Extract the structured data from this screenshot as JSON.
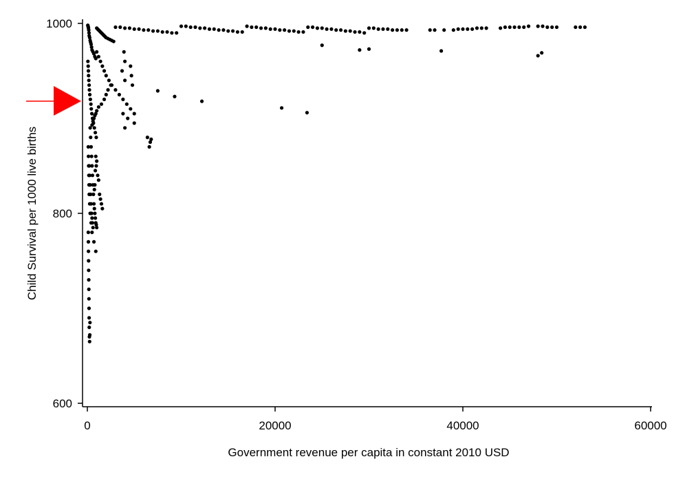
{
  "chart_data": {
    "type": "scatter",
    "title": "",
    "xlabel": "Government revenue per capita in constant 2010 USD",
    "ylabel": "Child Survival per 1000 live births",
    "xlim": [
      0,
      60000
    ],
    "ylim": [
      600,
      1000
    ],
    "xticks": [
      0,
      20000,
      40000,
      60000
    ],
    "yticks": [
      600,
      800,
      1000
    ],
    "xtick_labels": [
      "0",
      "20000",
      "40000",
      "60000"
    ],
    "ytick_labels": [
      "600",
      "800",
      "1000"
    ],
    "grid": false,
    "legend": "none",
    "marker_color": "#000000",
    "annotation": {
      "type": "arrow",
      "color": "#ff0000",
      "y": 918,
      "direction": "right"
    },
    "series": [
      {
        "x": [
          50,
          80,
          100,
          120,
          150,
          180,
          200,
          250,
          300,
          350,
          400,
          450,
          500,
          600,
          700,
          800,
          900,
          60,
          90,
          110,
          130,
          160,
          190,
          220,
          260,
          320,
          380,
          420,
          480,
          550,
          650,
          750,
          850,
          950,
          100,
          120,
          140,
          160,
          180,
          200,
          250,
          300,
          400,
          500,
          700,
          900,
          1000,
          1100,
          1200,
          1300,
          1400,
          1500,
          1600,
          1700,
          1800,
          1900,
          2000,
          2200,
          2400,
          2600,
          2800,
          1000,
          1200,
          1400,
          1600,
          1800,
          2000,
          2300,
          2600,
          3000,
          3400,
          3800,
          4200,
          4600,
          5000,
          3000,
          3500,
          4000,
          4500,
          5000,
          5500,
          6000,
          6500,
          7000,
          7500,
          8000,
          8500,
          9000,
          9500,
          10000,
          10500,
          11000,
          11500,
          12000,
          12500,
          13000,
          13500,
          14000,
          14500,
          15000,
          15500,
          16000,
          16500,
          17000,
          17500,
          18000,
          18500,
          19000,
          19500,
          20000,
          20500,
          21000,
          21500,
          22000,
          22500,
          23000,
          23500,
          24000,
          24500,
          25000,
          25500,
          26000,
          26500,
          27000,
          27500,
          28000,
          28500,
          29000,
          29500,
          30000,
          30500,
          31000,
          31500,
          32000,
          32500,
          33000,
          33500,
          34000,
          36500,
          37000,
          38000,
          39000,
          39500,
          40000,
          40500,
          41000,
          41500,
          42000,
          42500,
          44000,
          44500,
          45000,
          45500,
          46000,
          46500,
          47000,
          48000,
          48500,
          49000,
          49500,
          50000,
          52000,
          52500,
          53000,
          37700,
          48000,
          48400,
          29000,
          30000,
          25000,
          20700,
          23400,
          12200,
          9300,
          7500,
          4600,
          4700,
          4800,
          3800,
          4300,
          5000,
          4000,
          6400,
          6600,
          6700,
          6800,
          4000,
          4000,
          3700,
          3900,
          2500,
          2200,
          2000,
          1800,
          1500,
          1200,
          1000,
          900,
          800,
          700,
          600,
          500,
          300,
          350,
          400,
          450,
          500,
          550,
          600,
          650,
          700,
          750,
          800,
          850,
          900,
          950,
          1000,
          200,
          250,
          300,
          350,
          400,
          450,
          500,
          550,
          600,
          100,
          110,
          120,
          130,
          140,
          150,
          160,
          170,
          180,
          190,
          200,
          220,
          240,
          260,
          280,
          900,
          1000,
          950,
          850,
          1100,
          1200,
          800,
          750,
          1300,
          1400,
          1500,
          1600
        ],
        "y": [
          998,
          997,
          996,
          995,
          993,
          990,
          987,
          985,
          982,
          980,
          978,
          975,
          972,
          970,
          968,
          965,
          963,
          960,
          955,
          950,
          945,
          940,
          935,
          930,
          925,
          920,
          915,
          910,
          905,
          900,
          895,
          890,
          885,
          880,
          870,
          860,
          850,
          840,
          830,
          820,
          810,
          800,
          790,
          780,
          770,
          760,
          995,
          994,
          993,
          992,
          991,
          990,
          989,
          988,
          987,
          986,
          985,
          984,
          983,
          982,
          981,
          970,
          965,
          960,
          955,
          950,
          945,
          940,
          935,
          930,
          925,
          920,
          915,
          910,
          905,
          996,
          996,
          995,
          995,
          994,
          994,
          993,
          993,
          992,
          992,
          991,
          991,
          990,
          990,
          997,
          997,
          996,
          996,
          995,
          995,
          994,
          994,
          993,
          993,
          992,
          992,
          991,
          991,
          997,
          996,
          996,
          995,
          995,
          994,
          994,
          993,
          993,
          992,
          992,
          991,
          991,
          996,
          996,
          995,
          995,
          994,
          994,
          993,
          993,
          992,
          992,
          991,
          991,
          990,
          995,
          995,
          994,
          994,
          994,
          993,
          993,
          993,
          993,
          993,
          993,
          993,
          993,
          994,
          994,
          994,
          994,
          995,
          995,
          995,
          995,
          996,
          996,
          996,
          996,
          996,
          997,
          997,
          997,
          996,
          996,
          996,
          996,
          996,
          996,
          971,
          966,
          969,
          972,
          973,
          977,
          911,
          906,
          918,
          923,
          929,
          955,
          945,
          935,
          905,
          900,
          895,
          890,
          880,
          870,
          875,
          878,
          940,
          960,
          950,
          970,
          935,
          930,
          925,
          920,
          915,
          912,
          908,
          905,
          903,
          900,
          897,
          893,
          890,
          880,
          870,
          860,
          850,
          840,
          830,
          820,
          810,
          805,
          800,
          795,
          790,
          788,
          785,
          850,
          840,
          830,
          820,
          810,
          800,
          795,
          790,
          785,
          780,
          770,
          760,
          750,
          740,
          730,
          720,
          710,
          700,
          690,
          680,
          670,
          665,
          672,
          685,
          860,
          855,
          850,
          845,
          840,
          835,
          830,
          825,
          820,
          815,
          810,
          805
        ]
      }
    ]
  }
}
